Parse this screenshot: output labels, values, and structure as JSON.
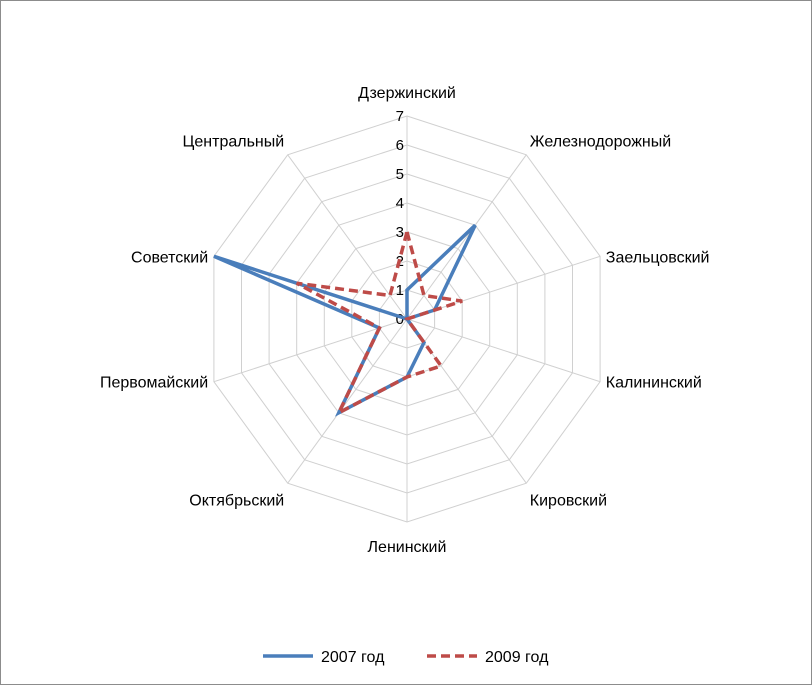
{
  "chart_data": {
    "type": "radar",
    "categories": [
      "Дзержинский",
      "Железнодорожный",
      "Заельцовский",
      "Калининский",
      "Кировский",
      "Ленинский",
      "Октябрьский",
      "Первомайский",
      "Советский",
      "Центральный"
    ],
    "series": [
      {
        "name": "2007 год",
        "values": [
          1,
          4,
          1,
          0,
          1,
          2,
          4,
          1,
          7,
          0
        ],
        "color": "#4a7ebb",
        "dash": "solid"
      },
      {
        "name": "2009 год",
        "values": [
          3,
          1,
          2,
          0,
          2,
          2,
          4,
          1,
          4,
          1
        ],
        "color": "#be4b48",
        "dash": "dashed"
      }
    ],
    "rmin": 0,
    "rmax": 7,
    "ticks": [
      "0",
      "1",
      "2",
      "3",
      "4",
      "5",
      "6",
      "7"
    ],
    "grid": true,
    "legend_position": "bottom",
    "grid_color": "#d0d0d0"
  }
}
